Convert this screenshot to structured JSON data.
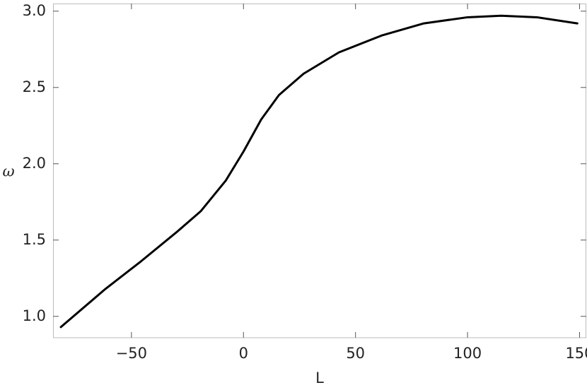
{
  "chart_data": {
    "type": "line",
    "x_label": "L",
    "y_label": "ω",
    "x": [
      -81.5,
      -61.6,
      -45.8,
      -30,
      -19,
      -7.9,
      0,
      7.9,
      15.8,
      26.8,
      42.6,
      61.6,
      80.5,
      100,
      115,
      131,
      149
    ],
    "series": [
      {
        "color": "#000000",
        "values": [
          0.93,
          1.18,
          1.36,
          1.55,
          1.69,
          1.89,
          2.08,
          2.29,
          2.45,
          2.59,
          2.73,
          2.84,
          2.92,
          2.96,
          2.97,
          2.96,
          2.92
        ]
      }
    ],
    "xlim": [
      -85,
      153
    ],
    "ylim": [
      0.86,
      3.05
    ],
    "xticks": [
      {
        "value": -50,
        "label": "−50"
      },
      0,
      50,
      100,
      150
    ],
    "yticks": [
      {
        "value": 1.0,
        "label": "1.0"
      },
      1.5,
      {
        "value": 2.0,
        "label": "2.0"
      },
      2.5,
      {
        "value": 3.0,
        "label": "3.0"
      }
    ]
  }
}
